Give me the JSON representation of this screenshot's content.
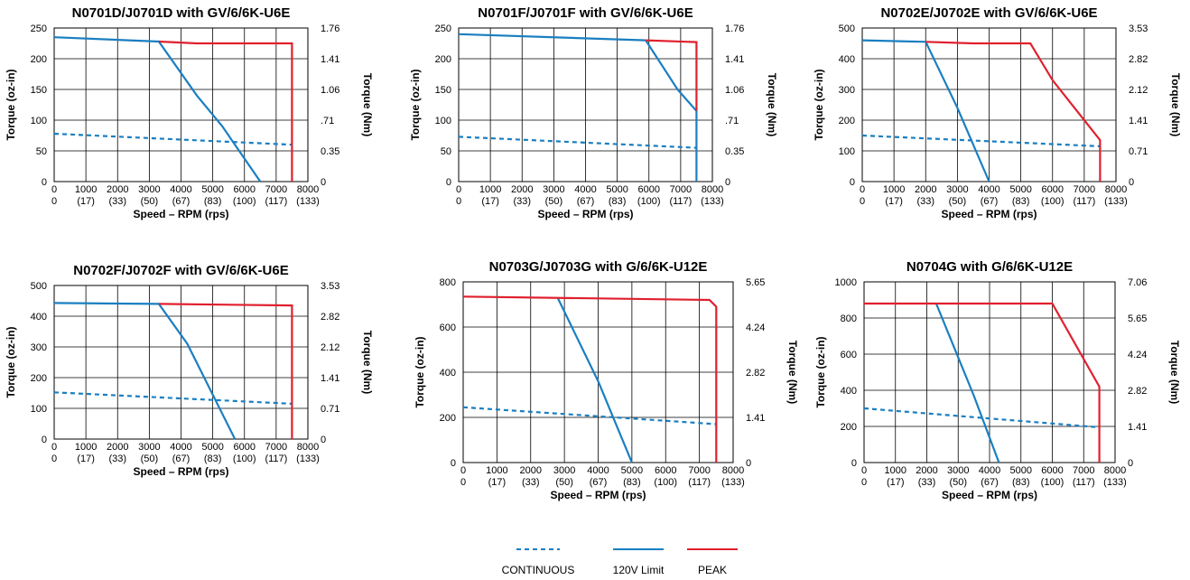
{
  "legend": [
    {
      "name": "CONTINUOUS",
      "color": "#1a7fc1",
      "style": "dashed"
    },
    {
      "name": "120V Limit",
      "color": "#1a7fc1",
      "style": "solid"
    },
    {
      "name": "PEAK",
      "color": "#e0202e",
      "style": "solid"
    }
  ],
  "chart_data": [
    {
      "type": "line",
      "title": "N0701D/J0701D with GV/6/6K-U6E",
      "xlabel": "Speed – RPM (rps)",
      "ylabel": "Torque (oz-in)",
      "y2label": "Torque (Nm)",
      "xlim": [
        0,
        8000
      ],
      "ylim": [
        0,
        250
      ],
      "x_ticks": [
        "0",
        "1000",
        "2000",
        "3000",
        "4000",
        "5000",
        "6000",
        "7000",
        "8000"
      ],
      "x_ticks_rps": [
        "0",
        "(17)",
        "(33)",
        "(50)",
        "(67)",
        "(83)",
        "(100)",
        "(117)",
        "(133)"
      ],
      "y_ticks": [
        "0",
        "50",
        "100",
        "150",
        "200",
        "250"
      ],
      "y2_ticks": [
        "0",
        "0.35",
        ".71",
        "1.06",
        "1.41",
        "1.76"
      ],
      "grid": true,
      "series": [
        {
          "name": "CONTINUOUS",
          "x": [
            0,
            7500
          ],
          "y": [
            78,
            60
          ]
        },
        {
          "name": "120V Limit",
          "x": [
            0,
            3300,
            4500,
            5300,
            6500
          ],
          "y": [
            235,
            228,
            140,
            90,
            0
          ]
        },
        {
          "name": "PEAK",
          "x": [
            3300,
            4500,
            7500,
            7500
          ],
          "y": [
            228,
            225,
            225,
            0
          ]
        }
      ]
    },
    {
      "type": "line",
      "title": "N0701F/J0701F with GV/6/6K-U6E",
      "xlabel": "Speed – RPM (rps)",
      "ylabel": "Torque (oz-in)",
      "y2label": "Torque (Nm)",
      "xlim": [
        0,
        8000
      ],
      "ylim": [
        0,
        250
      ],
      "x_ticks": [
        "0",
        "1000",
        "2000",
        "3000",
        "4000",
        "5000",
        "6000",
        "7000",
        "8000"
      ],
      "x_ticks_rps": [
        "0",
        "(17)",
        "(33)",
        "(50)",
        "(67)",
        "(83)",
        "(100)",
        "(117)",
        "(133)"
      ],
      "y_ticks": [
        "0",
        "50",
        "100",
        "150",
        "200",
        "250"
      ],
      "y2_ticks": [
        "0",
        "0.35",
        ".71",
        "1.06",
        "1.41",
        "1.76"
      ],
      "grid": true,
      "series": [
        {
          "name": "CONTINUOUS",
          "x": [
            0,
            7500
          ],
          "y": [
            73,
            55
          ]
        },
        {
          "name": "120V Limit",
          "x": [
            0,
            5900,
            6900,
            7500,
            7500
          ],
          "y": [
            240,
            230,
            150,
            115,
            0
          ]
        },
        {
          "name": "PEAK",
          "x": [
            5900,
            7500,
            7500
          ],
          "y": [
            230,
            227,
            115
          ]
        }
      ]
    },
    {
      "type": "line",
      "title": "N0702E/J0702E with GV/6/6K-U6E",
      "xlabel": "Speed – RPM (rps)",
      "ylabel": "Torque (oz-in)",
      "y2label": "Torque (Nm)",
      "xlim": [
        0,
        8000
      ],
      "ylim": [
        0,
        500
      ],
      "x_ticks": [
        "0",
        "1000",
        "2000",
        "3000",
        "4000",
        "5000",
        "6000",
        "7000",
        "8000"
      ],
      "x_ticks_rps": [
        "0",
        "(17)",
        "(33)",
        "(50)",
        "(67)",
        "(83)",
        "(100)",
        "(117)",
        "(133)"
      ],
      "y_ticks": [
        "0",
        "100",
        "200",
        "300",
        "400",
        "500"
      ],
      "y2_ticks": [
        "0",
        "0.71",
        "1.41",
        "2.12",
        "2.82",
        "3.53"
      ],
      "grid": true,
      "series": [
        {
          "name": "CONTINUOUS",
          "x": [
            0,
            7500
          ],
          "y": [
            150,
            115
          ]
        },
        {
          "name": "120V Limit",
          "x": [
            0,
            2000,
            3000,
            4000
          ],
          "y": [
            460,
            455,
            240,
            0
          ]
        },
        {
          "name": "PEAK",
          "x": [
            2000,
            3500,
            5300,
            6000,
            7500,
            7500
          ],
          "y": [
            455,
            450,
            450,
            330,
            135,
            0
          ]
        }
      ]
    },
    {
      "type": "line",
      "title": "N0702F/J0702F with GV/6/6K-U6E",
      "xlabel": "Speed – RPM (rps)",
      "ylabel": "Torque (oz-in)",
      "y2label": "Torque (Nm)",
      "xlim": [
        0,
        8000
      ],
      "ylim": [
        0,
        500
      ],
      "x_ticks": [
        "0",
        "1000",
        "2000",
        "3000",
        "4000",
        "5000",
        "6000",
        "7000",
        "8000"
      ],
      "x_ticks_rps": [
        "0",
        "(17)",
        "(33)",
        "(50)",
        "(67)",
        "(83)",
        "(100)",
        "(117)",
        "(133)"
      ],
      "y_ticks": [
        "0",
        "100",
        "200",
        "300",
        "400",
        "500"
      ],
      "y2_ticks": [
        "0",
        "0.71",
        "1.41",
        "2.12",
        "2.82",
        "3.53"
      ],
      "grid": true,
      "series": [
        {
          "name": "CONTINUOUS",
          "x": [
            0,
            7500
          ],
          "y": [
            152,
            115
          ]
        },
        {
          "name": "120V Limit",
          "x": [
            0,
            3300,
            4200,
            5700
          ],
          "y": [
            443,
            440,
            310,
            0
          ]
        },
        {
          "name": "PEAK",
          "x": [
            3300,
            7500,
            7500
          ],
          "y": [
            440,
            435,
            0
          ]
        }
      ]
    },
    {
      "type": "line",
      "title": "N0703G/J0703G with G/6/6K-U12E",
      "xlabel": "Speed – RPM (rps)",
      "ylabel": "Torque (oz-in)",
      "y2label": "Torque (Nm)",
      "xlim": [
        0,
        8000
      ],
      "ylim": [
        0,
        800
      ],
      "x_ticks": [
        "0",
        "1000",
        "2000",
        "3000",
        "4000",
        "5000",
        "6000",
        "7000",
        "8000"
      ],
      "x_ticks_rps": [
        "0",
        "(17)",
        "(33)",
        "(50)",
        "(67)",
        "(83)",
        "(100)",
        "(117)",
        "(133)"
      ],
      "y_ticks": [
        "0",
        "200",
        "400",
        "600",
        "800"
      ],
      "y2_ticks": [
        "0",
        "1.41",
        "2.82",
        "4.24",
        "5.65"
      ],
      "grid": true,
      "series": [
        {
          "name": "CONTINUOUS",
          "x": [
            0,
            7500
          ],
          "y": [
            245,
            170
          ]
        },
        {
          "name": "120V Limit",
          "x": [
            2800,
            4000,
            5000
          ],
          "y": [
            730,
            360,
            0
          ]
        },
        {
          "name": "PEAK",
          "x": [
            0,
            7300,
            7500,
            7500
          ],
          "y": [
            735,
            720,
            690,
            0
          ]
        }
      ]
    },
    {
      "type": "line",
      "title": "N0704G with G/6/6K-U12E",
      "xlabel": "Speed – RPM (rps)",
      "ylabel": "Torque (oz-in)",
      "y2label": "Torque (Nm)",
      "xlim": [
        0,
        8000
      ],
      "ylim": [
        0,
        1000
      ],
      "x_ticks": [
        "0",
        "1000",
        "2000",
        "3000",
        "4000",
        "5000",
        "6000",
        "7000",
        "8000"
      ],
      "x_ticks_rps": [
        "0",
        "(17)",
        "(33)",
        "(50)",
        "(67)",
        "(83)",
        "(100)",
        "(117)",
        "(133)"
      ],
      "y_ticks": [
        "0",
        "200",
        "400",
        "600",
        "800",
        "1000"
      ],
      "y2_ticks": [
        "0",
        "1.41",
        "2.82",
        "4.24",
        "5.65",
        "7.06"
      ],
      "grid": true,
      "series": [
        {
          "name": "CONTINUOUS",
          "x": [
            0,
            7500
          ],
          "y": [
            300,
            195
          ]
        },
        {
          "name": "120V Limit",
          "x": [
            2300,
            3500,
            4300
          ],
          "y": [
            880,
            370,
            0
          ]
        },
        {
          "name": "PEAK",
          "x": [
            0,
            6000,
            7500,
            7500
          ],
          "y": [
            880,
            880,
            420,
            0
          ]
        }
      ]
    }
  ]
}
